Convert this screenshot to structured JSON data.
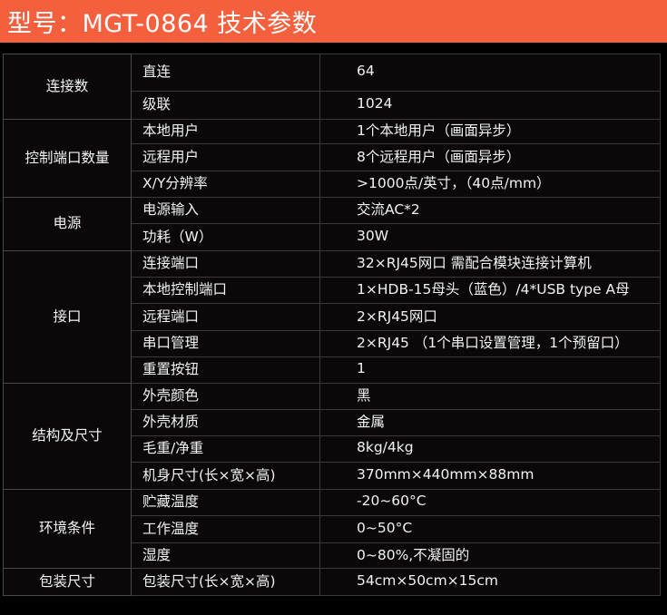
{
  "title": "型号：MGT-0864  技术参数",
  "groups": [
    {
      "label": "连接数",
      "rows": [
        [
          "直连",
          "64"
        ],
        [
          "级联",
          "1024"
        ]
      ]
    },
    {
      "label": "控制端口数量",
      "rows": [
        [
          "本地用户",
          "1个本地用户（画面异步）"
        ],
        [
          "远程用户",
          "8个远程用户（画面异步）"
        ],
        [
          "X/Y分辨率",
          ">1000点/英寸，（40点/mm）"
        ]
      ]
    },
    {
      "label": "电源",
      "rows": [
        [
          "电源输入",
          "交流AC*2"
        ],
        [
          "功耗（W）",
          "30W"
        ]
      ]
    },
    {
      "label": "接口",
      "rows": [
        [
          "连接端口",
          "32×RJ45网口  需配合模块连接计算机"
        ],
        [
          "本地控制端口",
          "1×HDB-15母头（蓝色）/4*USB type A母"
        ],
        [
          "远程端口",
          "2×RJ45网口"
        ],
        [
          "串口管理",
          "2×RJ45 （1个串口设置管理，1个预留口）"
        ],
        [
          "重置按钮",
          "1"
        ]
      ]
    },
    {
      "label": "结构及尺寸",
      "rows": [
        [
          "外壳颜色",
          "黑"
        ],
        [
          "外壳材质",
          "金属"
        ],
        [
          "毛重/净重",
          "8kg/4kg"
        ],
        [
          "机身尺寸(长×宽×高)",
          "370mm×440mm×88mm"
        ]
      ]
    },
    {
      "label": "环境条件",
      "rows": [
        [
          "贮藏温度",
          "-20~60°C"
        ],
        [
          "工作温度",
          "0~50°C"
        ],
        [
          "湿度",
          "0~80%,不凝固的"
        ]
      ]
    },
    {
      "label": "包装尺寸",
      "rows": [
        [
          "包装尺寸(长×宽×高)",
          "54cm×50cm×15cm"
        ]
      ]
    }
  ],
  "colors": {
    "header": "#f4603e",
    "background": "#0a0809"
  }
}
